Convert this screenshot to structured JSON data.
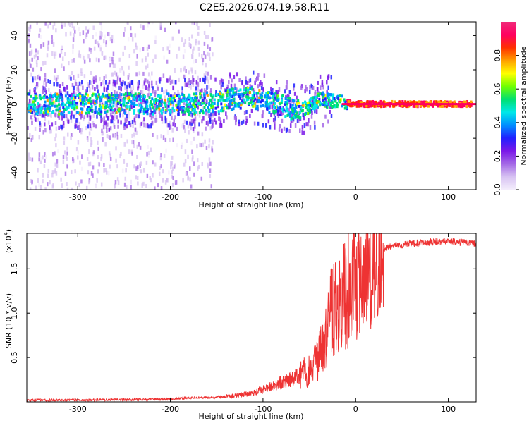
{
  "title": "C2E5.2026.074.19.58.R11",
  "chart_data": [
    {
      "type": "heatmap",
      "name": "spectrogram",
      "xlabel": "Height of straight line (km)",
      "ylabel": "Frequency (Hz)",
      "xlim": [
        -355,
        130
      ],
      "ylim": [
        -50,
        48
      ],
      "x_ticks": [
        -300,
        -200,
        -100,
        0,
        100
      ],
      "x_tick_labels": [
        "-300",
        "-200",
        "-100",
        "0",
        "100"
      ],
      "y_ticks": [
        40,
        20,
        0,
        -20,
        -40
      ],
      "y_tick_labels": [
        "40",
        "20",
        "0",
        "-20",
        "-40"
      ],
      "ridge": {
        "x": [
          -355,
          -300,
          -250,
          -210,
          -180,
          -150,
          -130,
          -115,
          -100,
          -85,
          -70,
          -60,
          -50,
          -40,
          -30,
          -20,
          -10,
          0,
          50,
          130
        ],
        "y": [
          0,
          0,
          0,
          0,
          0,
          1.5,
          3,
          4,
          2,
          0,
          -3,
          -4,
          -1,
          3,
          2,
          1,
          0.5,
          0,
          0,
          0
        ]
      },
      "colorbar": {
        "label": "Normalized spectral amplitude",
        "range": [
          0,
          1
        ],
        "ticks": [
          0,
          0.2,
          0.4,
          0.6,
          0.8
        ],
        "tick_labels": [
          "0.0",
          "0.2",
          "0.4",
          "0.6",
          "0.8"
        ],
        "colors": [
          "#f4eefc",
          "#d7c2f2",
          "#a469e6",
          "#7a18e8",
          "#2020ff",
          "#0090ff",
          "#00e8e8",
          "#00e070",
          "#70ff00",
          "#ffff00",
          "#ffa000",
          "#ff3000",
          "#ff0060",
          "#f02a7a"
        ]
      }
    },
    {
      "type": "line",
      "name": "snr",
      "xlabel": "Height of straight line (km)",
      "ylabel": "SNR (10 * v/v)",
      "scale_label": "(x10",
      "scale_exponent": "4",
      "xlim": [
        -355,
        130
      ],
      "ylim": [
        0,
        1.9
      ],
      "x_ticks": [
        -300,
        -200,
        -100,
        0,
        100
      ],
      "x_tick_labels": [
        "-300",
        "-200",
        "-100",
        "0",
        "100"
      ],
      "y_ticks": [
        0.5,
        1.0,
        1.5
      ],
      "y_tick_labels": [
        "0.5",
        "1.0",
        "1.5"
      ],
      "series": [
        {
          "name": "SNR",
          "color": "#ee3333",
          "x": [
            -355,
            -300,
            -250,
            -200,
            -170,
            -150,
            -130,
            -110,
            -100,
            -90,
            -80,
            -70,
            -60,
            -50,
            -45,
            -40,
            -35,
            -30,
            -25,
            -20,
            -15,
            -10,
            -5,
            0,
            5,
            10,
            15,
            20,
            25,
            30,
            40,
            50,
            60,
            80,
            100,
            110,
            130
          ],
          "y": [
            0.02,
            0.02,
            0.025,
            0.03,
            0.05,
            0.05,
            0.07,
            0.1,
            0.14,
            0.18,
            0.22,
            0.25,
            0.3,
            0.35,
            0.42,
            0.5,
            0.6,
            0.85,
            1.05,
            1.15,
            1.2,
            1.25,
            1.3,
            1.35,
            1.38,
            1.42,
            1.5,
            1.58,
            1.68,
            1.73,
            1.76,
            1.77,
            1.78,
            1.8,
            1.82,
            1.8,
            1.79
          ]
        }
      ]
    }
  ]
}
